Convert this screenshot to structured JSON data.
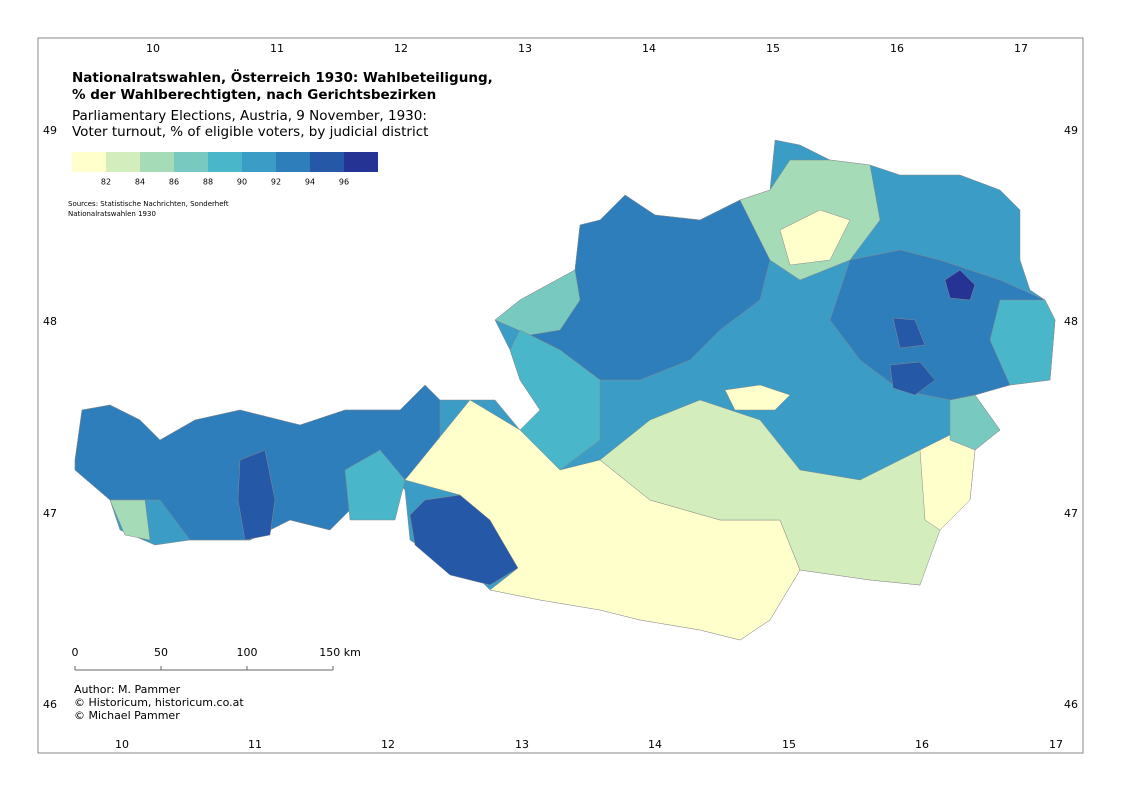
{
  "title": {
    "line1": "Nationalratswahlen, Österreich 1930: Wahlbeteiligung,",
    "line2": "% der Wahlberechtigten, nach Gerichtsbezirken"
  },
  "subtitle": {
    "line1": "Parliamentary Elections, Austria, 9 November, 1930:",
    "line2": "Voter turnout, % of eligible voters, by judicial district"
  },
  "legend": {
    "colors": [
      "#ffffcc",
      "#d3eebc",
      "#a6dbb8",
      "#78c9c0",
      "#4ab6c9",
      "#3b9cc6",
      "#2e7ebc",
      "#2658a8",
      "#253494"
    ],
    "labels": [
      82,
      84,
      86,
      88,
      90,
      92,
      94,
      96
    ]
  },
  "sources": [
    "Sources: Statistische Nachrichten, Sonderheft",
    "Nationalratswahlen 1930"
  ],
  "scale": {
    "labels": [
      0,
      50,
      100,
      "150 km"
    ]
  },
  "credits": [
    "Author: M. Pammer",
    "© Historicum, historicum.co.at",
    "© Michael Pammer"
  ],
  "longitude_top": [
    10,
    11,
    12,
    13,
    14,
    15,
    16,
    17
  ],
  "longitude_bottom": [
    10,
    11,
    12,
    13,
    14,
    15,
    16,
    17
  ],
  "latitude_left": [
    49,
    48,
    47,
    46
  ],
  "latitude_right": [
    49,
    48,
    47,
    46
  ]
}
